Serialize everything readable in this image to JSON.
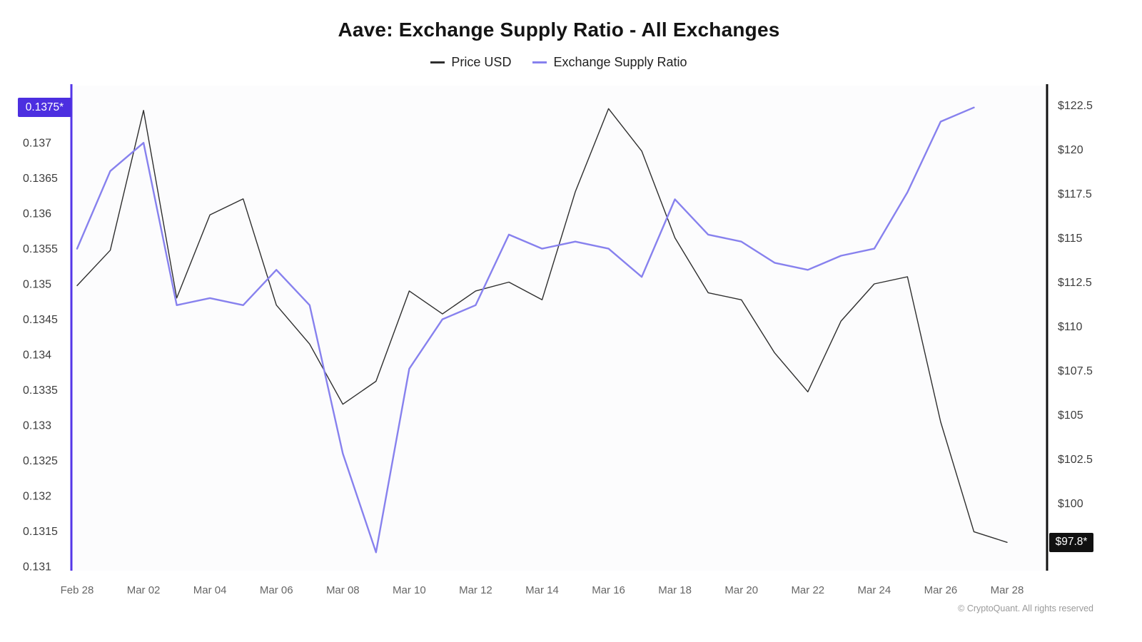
{
  "title": "Aave: Exchange Supply Ratio - All Exchanges",
  "watermark": "CryptoQuant",
  "footer": "© CryptoQuant. All rights reserved",
  "legend": [
    {
      "label": "Price USD",
      "color": "#2e2e2e"
    },
    {
      "label": "Exchange Supply Ratio",
      "color": "#8781ee"
    }
  ],
  "chart_data": {
    "type": "line",
    "x": [
      "Feb 28",
      "Mar 01",
      "Mar 02",
      "Mar 03",
      "Mar 04",
      "Mar 05",
      "Mar 06",
      "Mar 07",
      "Mar 08",
      "Mar 09",
      "Mar 10",
      "Mar 11",
      "Mar 12",
      "Mar 13",
      "Mar 14",
      "Mar 15",
      "Mar 16",
      "Mar 17",
      "Mar 18",
      "Mar 19",
      "Mar 20",
      "Mar 21",
      "Mar 22",
      "Mar 23",
      "Mar 24",
      "Mar 25",
      "Mar 26",
      "Mar 27",
      "Mar 28"
    ],
    "x_tick_indices": [
      0,
      2,
      4,
      6,
      8,
      10,
      12,
      14,
      16,
      18,
      20,
      22,
      24,
      26,
      28
    ],
    "series": [
      {
        "name": "Price USD",
        "axis": "right",
        "color": "#2e2e2e",
        "values": [
          112.3,
          114.3,
          122.2,
          111.6,
          116.3,
          117.2,
          111.2,
          109.0,
          105.6,
          106.9,
          112.0,
          110.7,
          112.0,
          112.5,
          111.5,
          117.6,
          122.3,
          119.9,
          115.0,
          111.9,
          111.5,
          108.5,
          106.3,
          110.3,
          112.4,
          112.8,
          104.6,
          98.4,
          97.8
        ]
      },
      {
        "name": "Exchange Supply Ratio",
        "axis": "left",
        "color": "#8781ee",
        "values": [
          0.1355,
          0.1366,
          0.137,
          0.1347,
          0.1348,
          0.1347,
          0.1352,
          0.1347,
          0.1326,
          0.1312,
          0.1338,
          0.1345,
          0.1347,
          0.1357,
          0.1355,
          0.1356,
          0.1355,
          0.1351,
          0.1362,
          0.1357,
          0.1356,
          0.1353,
          0.1352,
          0.1354,
          0.1355,
          0.1363,
          0.1373,
          0.1375,
          null
        ]
      }
    ],
    "left_axis": {
      "min": 0.13094,
      "max": 0.13781,
      "color": "#5436e8",
      "badge": {
        "label": "0.1375*",
        "value": 0.1375,
        "color": "#4c2fe0"
      },
      "ticks": [
        {
          "value": 0.137,
          "label": "0.137"
        },
        {
          "value": 0.1365,
          "label": "0.1365"
        },
        {
          "value": 0.136,
          "label": "0.136"
        },
        {
          "value": 0.1355,
          "label": "0.1355"
        },
        {
          "value": 0.135,
          "label": "0.135"
        },
        {
          "value": 0.1345,
          "label": "0.1345"
        },
        {
          "value": 0.134,
          "label": "0.134"
        },
        {
          "value": 0.1335,
          "label": "0.1335"
        },
        {
          "value": 0.133,
          "label": "0.133"
        },
        {
          "value": 0.1325,
          "label": "0.1325"
        },
        {
          "value": 0.132,
          "label": "0.132"
        },
        {
          "value": 0.1315,
          "label": "0.1315"
        },
        {
          "value": 0.131,
          "label": "0.131"
        }
      ]
    },
    "right_axis": {
      "min": 96.2,
      "max": 123.6,
      "color": "#111111",
      "badge": {
        "label": "$97.8*",
        "value": 97.8,
        "color": "#111111"
      },
      "ticks": [
        {
          "value": 122.5,
          "label": "$122.5"
        },
        {
          "value": 120,
          "label": "$120"
        },
        {
          "value": 117.5,
          "label": "$117.5"
        },
        {
          "value": 115,
          "label": "$115"
        },
        {
          "value": 112.5,
          "label": "$112.5"
        },
        {
          "value": 110,
          "label": "$110"
        },
        {
          "value": 107.5,
          "label": "$107.5"
        },
        {
          "value": 105,
          "label": "$105"
        },
        {
          "value": 102.5,
          "label": "$102.5"
        },
        {
          "value": 100,
          "label": "$100"
        }
      ]
    }
  }
}
